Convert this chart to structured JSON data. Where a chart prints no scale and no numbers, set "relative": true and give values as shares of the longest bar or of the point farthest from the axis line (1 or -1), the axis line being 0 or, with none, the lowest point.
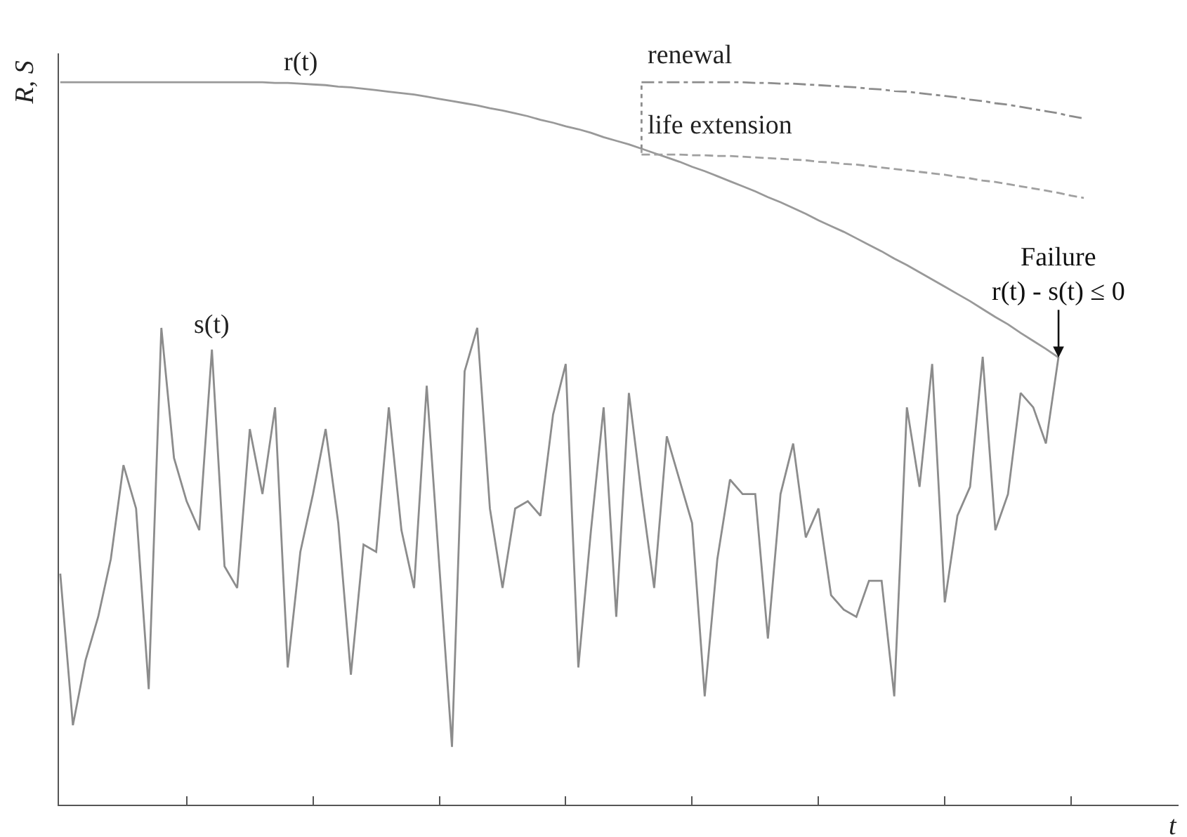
{
  "chart_data": {
    "type": "line",
    "relative": true,
    "xlabel": "t",
    "ylabel": "R, S",
    "categories": [
      null,
      null,
      null,
      null,
      null,
      null,
      null,
      null,
      null,
      null,
      null,
      null,
      null,
      null,
      null,
      null,
      null,
      null,
      null,
      null,
      null,
      null,
      null,
      null,
      null,
      null,
      null,
      null,
      null,
      null,
      null,
      null,
      null,
      null,
      null,
      null,
      null,
      null,
      null,
      null,
      null,
      null,
      null,
      null,
      null,
      null,
      null,
      null,
      null,
      null,
      null,
      null,
      null,
      null,
      null,
      null,
      null,
      null,
      null,
      null,
      null,
      null,
      null,
      null,
      null,
      null,
      null,
      null,
      null,
      null,
      null,
      null,
      null,
      null,
      null,
      null,
      null,
      null,
      null,
      null,
      null,
      null
    ],
    "series": [
      {
        "name": "r(t)",
        "color": "#999999",
        "line_style": "solid",
        "values": [
          1.0,
          1.0,
          1.0,
          1.0,
          1.0,
          1.0,
          1.0,
          1.0,
          1.0,
          1.0,
          1.0,
          1.0,
          1.0,
          1.0,
          1.0,
          1.0,
          1.0,
          0.999,
          0.999,
          0.998,
          0.997,
          0.996,
          0.994,
          0.993,
          0.991,
          0.989,
          0.987,
          0.985,
          0.983,
          0.98,
          0.977,
          0.974,
          0.971,
          0.968,
          0.964,
          0.961,
          0.957,
          0.953,
          0.948,
          0.944,
          0.939,
          0.935,
          0.93,
          0.924,
          0.919,
          0.914,
          0.908,
          0.902,
          0.896,
          0.89,
          0.883,
          0.877,
          0.87,
          0.863,
          0.856,
          0.849,
          0.841,
          0.834,
          0.826,
          0.818,
          0.809,
          0.801,
          0.793,
          0.784,
          0.775,
          0.766,
          0.756,
          0.747,
          0.737,
          0.727,
          0.717,
          0.707,
          0.697,
          0.686,
          0.675,
          0.665,
          0.653,
          0.642,
          0.631,
          0.619,
          null,
          null
        ]
      },
      {
        "name": "s(t)",
        "color": "#8c8c8c",
        "line_style": "solid",
        "values": [
          0.32,
          0.11,
          0.2,
          0.26,
          0.34,
          0.47,
          0.41,
          0.16,
          0.66,
          0.48,
          0.42,
          0.38,
          0.63,
          0.33,
          0.3,
          0.52,
          0.43,
          0.55,
          0.19,
          0.35,
          0.43,
          0.52,
          0.39,
          0.18,
          0.36,
          0.35,
          0.55,
          0.38,
          0.3,
          0.58,
          0.33,
          0.08,
          0.6,
          0.66,
          0.41,
          0.3,
          0.41,
          0.42,
          0.4,
          0.54,
          0.61,
          0.19,
          0.38,
          0.55,
          0.26,
          0.57,
          0.43,
          0.3,
          0.51,
          0.45,
          0.39,
          0.15,
          0.34,
          0.45,
          0.43,
          0.43,
          0.23,
          0.43,
          0.5,
          0.37,
          0.41,
          0.29,
          0.27,
          0.26,
          0.31,
          0.31,
          0.15,
          0.55,
          0.44,
          0.61,
          0.28,
          0.4,
          0.44,
          0.62,
          0.38,
          0.43,
          0.57,
          0.55,
          0.5,
          0.62,
          null,
          null
        ]
      },
      {
        "name": "renewal",
        "color": "#8c8c8c",
        "line_style": "dashdot",
        "values": [
          null,
          null,
          null,
          null,
          null,
          null,
          null,
          null,
          null,
          null,
          null,
          null,
          null,
          null,
          null,
          null,
          null,
          null,
          null,
          null,
          null,
          null,
          null,
          null,
          null,
          null,
          null,
          null,
          null,
          null,
          null,
          null,
          null,
          null,
          null,
          null,
          null,
          null,
          null,
          null,
          null,
          null,
          null,
          null,
          null,
          null,
          1.0,
          1.0,
          1.0,
          1.0,
          1.0,
          1.0,
          1.0,
          1.0,
          1.0,
          0.999,
          0.999,
          0.998,
          0.998,
          0.997,
          0.996,
          0.995,
          0.994,
          0.993,
          0.991,
          0.99,
          0.988,
          0.987,
          0.985,
          0.983,
          0.981,
          0.979,
          0.976,
          0.974,
          0.971,
          0.969,
          0.966,
          0.963,
          0.96,
          0.957,
          0.953,
          0.95
        ]
      },
      {
        "name": "life extension",
        "color": "#a0a0a0",
        "line_style": "dashed",
        "values": [
          null,
          null,
          null,
          null,
          null,
          null,
          null,
          null,
          null,
          null,
          null,
          null,
          null,
          null,
          null,
          null,
          null,
          null,
          null,
          null,
          null,
          null,
          null,
          null,
          null,
          null,
          null,
          null,
          null,
          null,
          null,
          null,
          null,
          null,
          null,
          null,
          null,
          null,
          null,
          null,
          null,
          null,
          null,
          null,
          null,
          null,
          0.9,
          0.9,
          0.9,
          0.9,
          0.899,
          0.899,
          0.898,
          0.898,
          0.897,
          0.896,
          0.895,
          0.894,
          0.893,
          0.892,
          0.89,
          0.889,
          0.887,
          0.886,
          0.884,
          0.882,
          0.88,
          0.878,
          0.876,
          0.874,
          0.872,
          0.869,
          0.867,
          0.864,
          0.862,
          0.859,
          0.856,
          0.853,
          0.85,
          0.847,
          0.843,
          0.84
        ]
      }
    ],
    "annotations": [
      "Failure\nr(t) - s(t) ≤ 0"
    ],
    "legend": false,
    "grid": false,
    "marker": "none"
  }
}
